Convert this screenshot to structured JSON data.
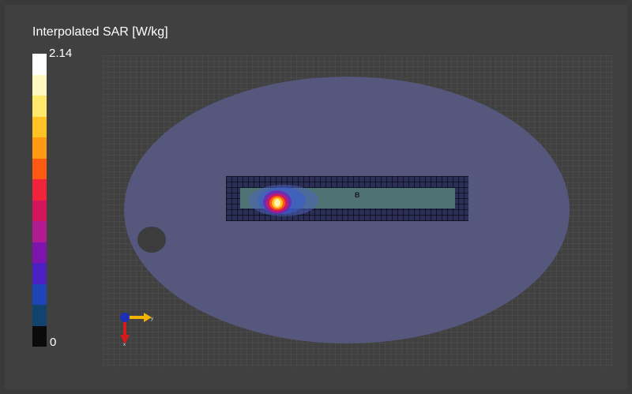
{
  "colorbar": {
    "title": "Interpolated SAR [W/kg]",
    "max_label": "2.14",
    "min_label": "0",
    "colors": [
      "#ffffff",
      "#fff8c0",
      "#ffe96a",
      "#ffc423",
      "#ff9a12",
      "#ff5a12",
      "#f2233a",
      "#d3165c",
      "#b01b91",
      "#7d14ad",
      "#4d20c2",
      "#1f44b8",
      "#12426e",
      "#0a0a0a"
    ]
  },
  "scene": {
    "antenna_marker": "B",
    "phantom_color": "#56577c",
    "background_color": "#404040"
  },
  "axes_widget": {
    "x_label": "y",
    "y_label": "x"
  }
}
